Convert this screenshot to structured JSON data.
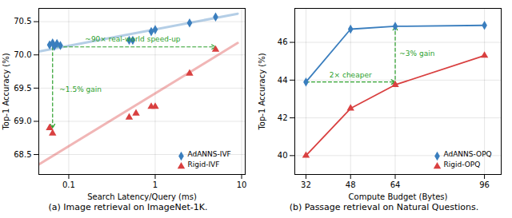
{
  "chart_data": [
    {
      "type": "scatter",
      "log": "x",
      "xlabel": "Search Latency/Query (ms)",
      "ylabel": "Top-1 Accuracy (%)",
      "caption": "(a) Image retrieval on ImageNet-1K.",
      "xlim": [
        0.045,
        11.0
      ],
      "ylim": [
        68.2,
        70.7
      ],
      "xticks": [
        0.1,
        1,
        10
      ],
      "yticks": [
        68.5,
        {
          "value": 69.0,
          "label": "69.0"
        },
        69.5,
        {
          "value": 70.0,
          "label": "70.0"
        },
        70.5
      ],
      "grid": true,
      "legend": "lower right",
      "series": [
        {
          "name": "AdANNS-IVF",
          "color": "#3a7ebe",
          "marker": "diamond",
          "x": [
            0.06,
            0.065,
            0.068,
            0.073,
            0.08,
            0.5,
            0.55,
            0.9,
            1.0,
            2.5,
            5.0
          ],
          "values": [
            70.15,
            70.18,
            70.13,
            70.17,
            70.14,
            70.22,
            70.22,
            70.35,
            70.38,
            70.48,
            70.57
          ],
          "trend": {
            "x": [
              0.045,
              9.0
            ],
            "values": [
              70.05,
              70.62
            ]
          }
        },
        {
          "name": "Rigid-IVF",
          "color": "#d94040",
          "marker": "triangle",
          "x": [
            0.06,
            0.065,
            0.5,
            0.6,
            0.9,
            1.0,
            2.5,
            5.0
          ],
          "values": [
            68.9,
            68.82,
            69.06,
            69.12,
            69.22,
            69.22,
            69.72,
            70.08
          ],
          "trend": {
            "x": [
              0.045,
              9.0
            ],
            "values": [
              68.35,
              70.18
            ]
          }
        }
      ],
      "arrows": [
        {
          "x1": 0.065,
          "y1": 70.12,
          "x2": 5.0,
          "y2": 70.12,
          "color": "#2ca02c",
          "line_style": "dashed"
        },
        {
          "x1": 0.065,
          "y1": 70.12,
          "x2": 0.065,
          "y2": 68.9,
          "color": "#2ca02c",
          "line_style": "dashed"
        }
      ],
      "annotations": [
        {
          "text": "~90× real-world speed-up",
          "x": 0.55,
          "y": 70.2,
          "color": "#2ca02c"
        },
        {
          "text": "~1.5% gain",
          "x": 0.078,
          "y": 69.48,
          "color": "#2ca02c"
        }
      ]
    },
    {
      "type": "line",
      "xlabel": "Compute Budget (Bytes)",
      "ylabel": "Top-1 Accuracy (%)",
      "caption": "(b) Passage retrieval on Natural Questions.",
      "xlim": [
        28,
        102
      ],
      "ylim": [
        39.0,
        47.8
      ],
      "xticks": [
        32,
        48,
        64,
        96
      ],
      "yticks": [
        40,
        42,
        44,
        46
      ],
      "grid": true,
      "legend": "lower right",
      "series": [
        {
          "name": "AdANNS-OPQ",
          "color": "#3a7ebe",
          "marker": "diamond",
          "x": [
            32,
            48,
            64,
            96
          ],
          "values": [
            43.9,
            46.7,
            46.85,
            46.9
          ]
        },
        {
          "name": "Rigid-OPQ",
          "color": "#d94040",
          "marker": "triangle",
          "x": [
            32,
            48,
            64,
            96
          ],
          "values": [
            40.0,
            42.5,
            43.75,
            45.3
          ]
        }
      ],
      "arrows": [
        {
          "x1": 32,
          "y1": 43.9,
          "x2": 64,
          "y2": 43.9,
          "color": "#2ca02c",
          "line_style": "dashed"
        },
        {
          "x1": 64,
          "y1": 43.75,
          "x2": 64,
          "y2": 46.85,
          "color": "#2ca02c",
          "line_style": "dashed"
        }
      ],
      "annotations": [
        {
          "text": "2× cheaper",
          "x": 48,
          "y": 44.15,
          "color": "#2ca02c"
        },
        {
          "text": "~3% gain",
          "x": 65.5,
          "y": 45.4,
          "color": "#2ca02c"
        }
      ]
    }
  ]
}
